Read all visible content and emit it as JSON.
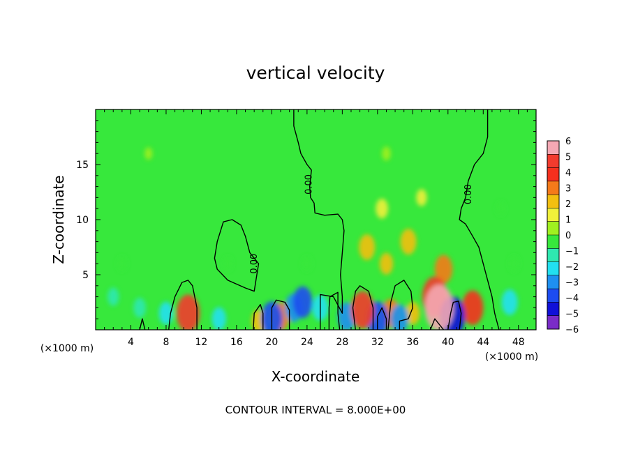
{
  "chart_data": {
    "type": "heatmap",
    "title": "vertical velocity",
    "xlabel": "X-coordinate",
    "ylabel": "Z-coordinate",
    "x_unit_left": "(×1000 m)",
    "x_unit_right": "(×1000 m)",
    "xlim": [
      0,
      50
    ],
    "ylim": [
      0,
      20
    ],
    "x_ticks": [
      4,
      8,
      12,
      16,
      20,
      24,
      28,
      32,
      36,
      40,
      44,
      48
    ],
    "x_tick_labels": [
      "4",
      "8",
      "12",
      "16",
      "20",
      "24",
      "28",
      "32",
      "36",
      "40",
      "44",
      "48"
    ],
    "y_ticks": [
      5,
      10,
      15
    ],
    "y_tick_labels": [
      "5",
      "10",
      "15"
    ],
    "colorbar": {
      "range": [
        -6,
        6
      ],
      "tick_values": [
        6,
        5,
        4,
        3,
        2,
        1,
        0,
        -1,
        -2,
        -3,
        -4,
        -5,
        -6
      ],
      "tick_labels": [
        "6",
        "5",
        "4",
        "3",
        "2",
        "1",
        "0",
        "−1",
        "−2",
        "−3",
        "−4",
        "−5",
        "−6"
      ],
      "colors": [
        "#f4a8b4",
        "#f23b2e",
        "#f5301e",
        "#f47a1a",
        "#f2bf10",
        "#f0f03a",
        "#a0f020",
        "#37e83c",
        "#2ee8b0",
        "#22e0f0",
        "#1e90f0",
        "#1c4cf0",
        "#1010d8",
        "#7a2cc8"
      ]
    },
    "contour_label": "0.00",
    "annotation": "CONTOUR INTERVAL = 8.000E+00",
    "grid": false,
    "field_features": [
      {
        "x": 10.5,
        "z": 1.5,
        "value": 4.5
      },
      {
        "x": 21.0,
        "z": 1.2,
        "value": 3.0
      },
      {
        "x": 18.5,
        "z": 0.8,
        "value": 2.0
      },
      {
        "x": 30.3,
        "z": 1.8,
        "value": 4.5
      },
      {
        "x": 30.8,
        "z": 7.5,
        "value": 2.5
      },
      {
        "x": 35.5,
        "z": 8.0,
        "value": 2.5
      },
      {
        "x": 38.5,
        "z": 3.0,
        "value": 5.0
      },
      {
        "x": 39.0,
        "z": 2.0,
        "value": 6.0
      },
      {
        "x": 39.5,
        "z": 5.5,
        "value": 3.0
      },
      {
        "x": 42.8,
        "z": 2.0,
        "value": 4.0
      },
      {
        "x": 33.5,
        "z": 1.5,
        "value": 3.0
      },
      {
        "x": 36.0,
        "z": 1.5,
        "value": 2.0
      },
      {
        "x": 32.5,
        "z": 11.0,
        "value": 1.5
      },
      {
        "x": 33.0,
        "z": 6.0,
        "value": 1.8
      },
      {
        "x": 37.0,
        "z": 12.0,
        "value": 1.0
      },
      {
        "x": 22.5,
        "z": 2.0,
        "value": -3.0
      },
      {
        "x": 23.5,
        "z": 2.5,
        "value": -3.5
      },
      {
        "x": 25.5,
        "z": 2.0,
        "value": -2.5
      },
      {
        "x": 20.0,
        "z": 1.0,
        "value": -4.0
      },
      {
        "x": 28.5,
        "z": 1.2,
        "value": -3.0
      },
      {
        "x": 32.0,
        "z": 1.0,
        "value": -4.0
      },
      {
        "x": 40.5,
        "z": 1.2,
        "value": -5.0
      },
      {
        "x": 34.5,
        "z": 1.0,
        "value": -3.0
      },
      {
        "x": 8.0,
        "z": 1.5,
        "value": -2.0
      },
      {
        "x": 5.0,
        "z": 2.0,
        "value": -1.5
      },
      {
        "x": 14.0,
        "z": 1.0,
        "value": -2.0
      },
      {
        "x": 47.0,
        "z": 2.5,
        "value": -2.5
      },
      {
        "x": 2.0,
        "z": 3.0,
        "value": -1.2
      },
      {
        "x": 3.0,
        "z": 6.0,
        "value": -0.6
      },
      {
        "x": 47.5,
        "z": 6.0,
        "value": -0.8
      },
      {
        "x": 46.0,
        "z": 11.0,
        "value": -0.4
      },
      {
        "x": 15.0,
        "z": 6.0,
        "value": -0.5
      },
      {
        "x": 24.0,
        "z": 6.0,
        "value": -0.6
      },
      {
        "x": 6.0,
        "z": 16.0,
        "value": 0.2
      },
      {
        "x": 33.0,
        "z": 16.0,
        "value": 0.5
      }
    ],
    "zero_contours": [
      [
        [
          22.5,
          20.0
        ],
        [
          22.5,
          18.5
        ],
        [
          23.0,
          17.0
        ],
        [
          23.3,
          16.0
        ],
        [
          24.0,
          15.0
        ],
        [
          24.5,
          14.5
        ],
        [
          24.3,
          13.0
        ],
        [
          24.4,
          12.0
        ],
        [
          24.8,
          11.5
        ],
        [
          24.9,
          10.6
        ],
        [
          26.0,
          10.4
        ],
        [
          27.5,
          10.5
        ],
        [
          28.0,
          10.0
        ],
        [
          28.2,
          9.0
        ],
        [
          28.0,
          7.0
        ],
        [
          27.8,
          5.0
        ],
        [
          28.0,
          3.0
        ],
        [
          28.0,
          1.5
        ],
        [
          27.0,
          3.0
        ],
        [
          25.5,
          3.2
        ],
        [
          25.5,
          0.0
        ]
      ],
      [
        [
          44.5,
          20.0
        ],
        [
          44.5,
          17.5
        ],
        [
          44.0,
          16.0
        ],
        [
          43.0,
          15.0
        ],
        [
          42.3,
          13.5
        ],
        [
          42.0,
          12.0
        ],
        [
          41.5,
          11.0
        ],
        [
          41.3,
          10.0
        ],
        [
          42.0,
          9.6
        ],
        [
          42.8,
          8.5
        ],
        [
          43.5,
          7.5
        ],
        [
          44.0,
          6.0
        ],
        [
          44.5,
          4.5
        ],
        [
          45.0,
          3.0
        ],
        [
          45.3,
          1.5
        ],
        [
          45.8,
          0.0
        ]
      ],
      [
        [
          14.5,
          9.8
        ],
        [
          15.5,
          10.0
        ],
        [
          16.5,
          9.5
        ],
        [
          17.0,
          8.5
        ],
        [
          17.5,
          7.0
        ],
        [
          18.0,
          6.5
        ],
        [
          18.5,
          6.0
        ],
        [
          18.2,
          4.5
        ],
        [
          18.0,
          3.5
        ],
        [
          17.0,
          3.8
        ],
        [
          15.0,
          4.5
        ],
        [
          13.8,
          5.5
        ],
        [
          13.5,
          6.5
        ],
        [
          13.8,
          8.0
        ]
      ],
      [
        [
          8.3,
          0.0
        ],
        [
          8.5,
          1.5
        ],
        [
          9.0,
          3.0
        ],
        [
          9.8,
          4.3
        ],
        [
          10.5,
          4.5
        ],
        [
          11.0,
          4.0
        ],
        [
          11.5,
          2.0
        ],
        [
          11.5,
          0.0
        ]
      ],
      [
        [
          17.9,
          0.0
        ],
        [
          18.0,
          1.5
        ],
        [
          18.7,
          2.3
        ],
        [
          19.0,
          1.5
        ],
        [
          19.0,
          0.0
        ]
      ],
      [
        [
          20.0,
          0.0
        ],
        [
          20.0,
          2.0
        ],
        [
          20.5,
          2.7
        ],
        [
          21.5,
          2.5
        ],
        [
          22.0,
          1.8
        ],
        [
          22.0,
          0.0
        ]
      ],
      [
        [
          26.5,
          0.0
        ],
        [
          26.5,
          2.0
        ],
        [
          26.6,
          3.0
        ],
        [
          27.5,
          3.4
        ],
        [
          27.5,
          1.5
        ],
        [
          27.7,
          0.0
        ]
      ],
      [
        [
          29.5,
          0.0
        ],
        [
          29.2,
          2.0
        ],
        [
          29.5,
          3.5
        ],
        [
          30.0,
          4.0
        ],
        [
          31.0,
          3.5
        ],
        [
          31.5,
          2.0
        ],
        [
          31.5,
          0.0
        ]
      ],
      [
        [
          32.0,
          0.0
        ],
        [
          32.0,
          1.2
        ],
        [
          32.5,
          2.0
        ],
        [
          33.0,
          1.0
        ],
        [
          33.0,
          0.0
        ]
      ],
      [
        [
          33.2,
          0.0
        ],
        [
          33.5,
          2.5
        ],
        [
          34.0,
          4.0
        ],
        [
          35.0,
          4.5
        ],
        [
          35.8,
          3.5
        ],
        [
          36.0,
          2.0
        ],
        [
          35.5,
          1.0
        ],
        [
          34.5,
          0.8
        ],
        [
          34.5,
          0.0
        ]
      ],
      [
        [
          40.0,
          0.0
        ],
        [
          40.3,
          1.5
        ],
        [
          40.6,
          2.5
        ],
        [
          41.2,
          2.6
        ],
        [
          41.5,
          1.5
        ],
        [
          41.3,
          0.0
        ]
      ],
      [
        [
          5.0,
          0.0
        ],
        [
          5.3,
          1.0
        ],
        [
          5.6,
          0.0
        ]
      ],
      [
        [
          38.0,
          0.0
        ],
        [
          38.5,
          1.0
        ],
        [
          39.5,
          0.0
        ]
      ]
    ],
    "contour_label_positions": [
      {
        "x": 24.2,
        "z": 13.2
      },
      {
        "x": 42.3,
        "z": 12.3
      },
      {
        "x": 18.0,
        "z": 6.0
      }
    ]
  }
}
